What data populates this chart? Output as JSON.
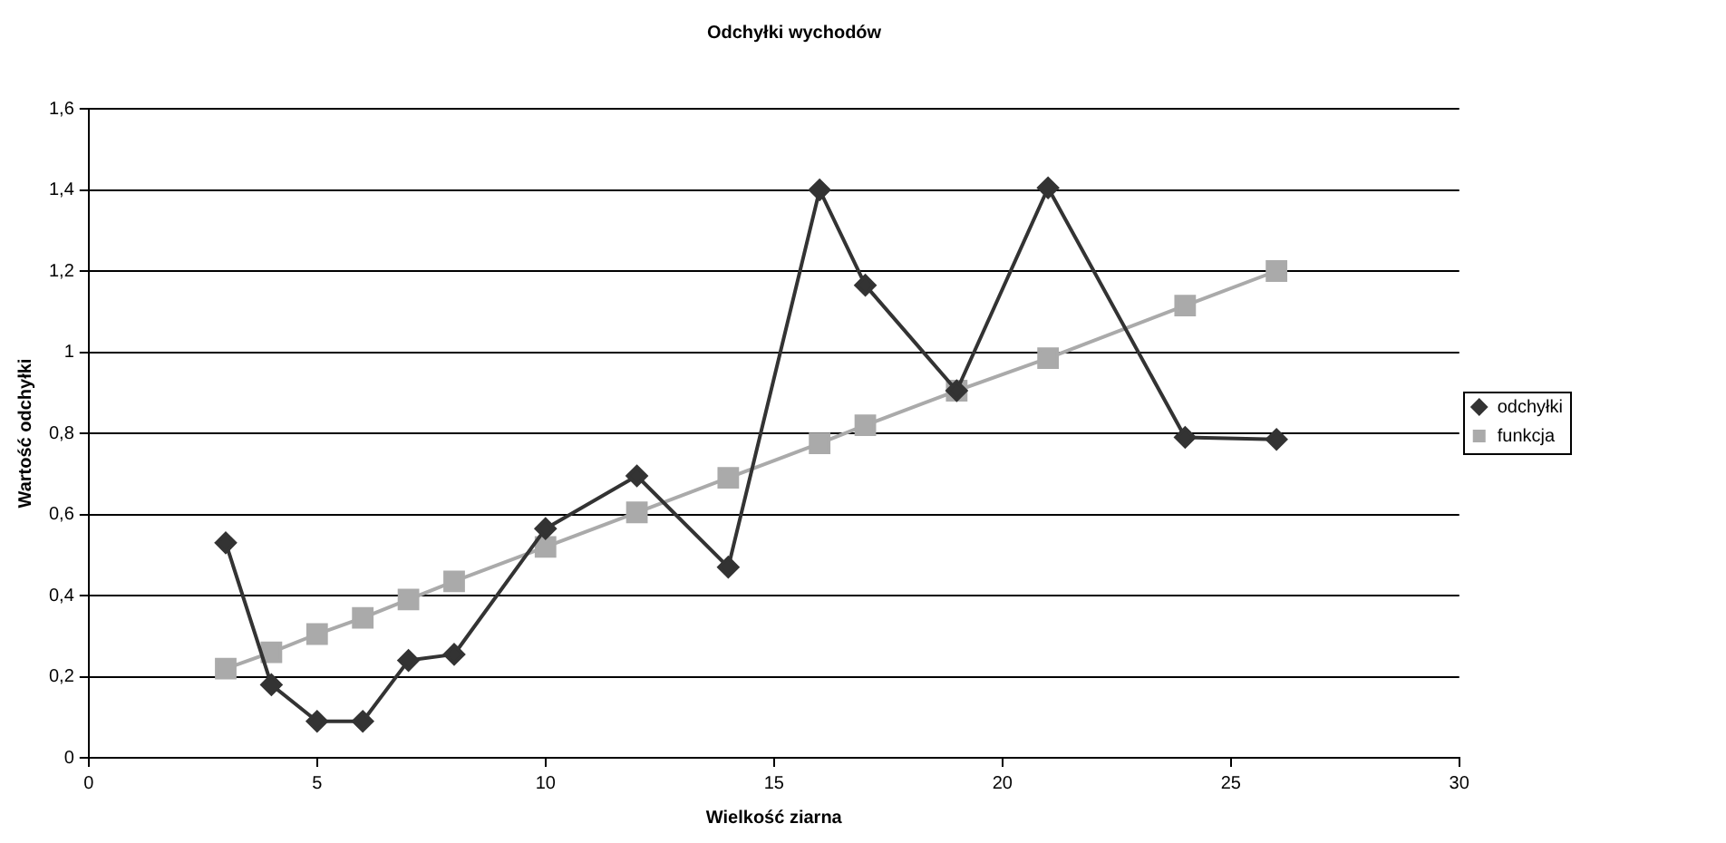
{
  "chart_data": {
    "type": "line",
    "title": "Odchyłki wychodów",
    "xlabel": "Wielkość ziarna",
    "ylabel": "Wartość odchyłki",
    "xlim": [
      0,
      30
    ],
    "xticks": [
      0,
      5,
      10,
      15,
      20,
      25,
      30
    ],
    "ylim": [
      0,
      1.6
    ],
    "yticks": [
      0,
      {
        "value": 0.2,
        "label": "0,2"
      },
      {
        "value": 0.4,
        "label": "0,4"
      },
      {
        "value": 0.6,
        "label": "0,6"
      },
      {
        "value": 0.8,
        "label": "0,8"
      },
      1,
      {
        "value": 1.2,
        "label": "1,2"
      },
      {
        "value": 1.4,
        "label": "1,4"
      },
      {
        "value": 1.6,
        "label": "1,6"
      }
    ],
    "grid": "y",
    "legend": "right",
    "line_style": "solid",
    "series": [
      {
        "name": "odchyłki",
        "color": "#333333",
        "marker": "diamond",
        "x": [
          3,
          4,
          5,
          6,
          7,
          8,
          10,
          12,
          14,
          16,
          17,
          19,
          21,
          24,
          26
        ],
        "values": [
          0.53,
          0.18,
          0.09,
          0.09,
          0.24,
          0.255,
          0.565,
          0.695,
          0.47,
          1.4,
          1.165,
          0.905,
          1.405,
          0.79,
          0.785
        ]
      },
      {
        "name": "funkcja",
        "color": "#aaaaaa",
        "marker": "square",
        "x": [
          3,
          4,
          5,
          6,
          7,
          8,
          10,
          12,
          14,
          16,
          17,
          19,
          21,
          24,
          26
        ],
        "values": [
          0.22,
          0.26,
          0.305,
          0.345,
          0.39,
          0.435,
          0.52,
          0.605,
          0.69,
          0.775,
          0.82,
          0.905,
          0.985,
          1.115,
          1.2
        ]
      }
    ]
  }
}
